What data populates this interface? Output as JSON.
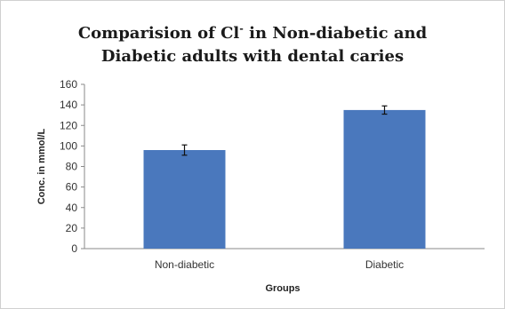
{
  "chart_data": {
    "type": "bar",
    "title_line1_pre": "Comparision of Cl",
    "title_line1_sup": "-",
    "title_line1_post": " in Non-diabetic and",
    "title_line2": "Diabetic adults with dental caries",
    "xlabel": "Groups",
    "ylabel": "Conc. in mmol/L",
    "ylim": [
      0,
      160
    ],
    "yticks": [
      0,
      20,
      40,
      60,
      80,
      100,
      120,
      140,
      160
    ],
    "categories": [
      "Non-diabetic",
      "Diabetic"
    ],
    "values": [
      96,
      135
    ],
    "errors": [
      5,
      4
    ],
    "bar_color": "#4a78bd",
    "grid": false,
    "legend": "none"
  }
}
